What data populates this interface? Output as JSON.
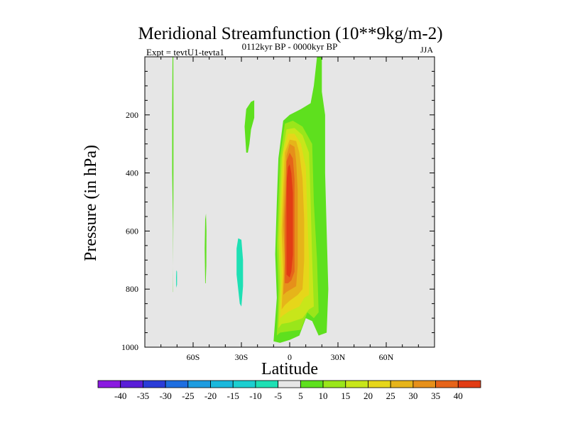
{
  "chart_data": {
    "type": "heatmap",
    "title": "Meridional Streamfunction (10**9kg/m-2)",
    "subtitle_left": "Expt = tevtU1-tevta1",
    "subtitle_center": "0112kyr BP - 0000kyr BP",
    "subtitle_right": "JJA",
    "xlabel": "Latitude",
    "ylabel": "Pressure (in hPa)",
    "xlim": [
      -90,
      90
    ],
    "ylim": [
      1000,
      0
    ],
    "x_ticks": [
      {
        "value": -60,
        "label": "60S"
      },
      {
        "value": -30,
        "label": "30S"
      },
      {
        "value": 0,
        "label": "0"
      },
      {
        "value": 30,
        "label": "30N"
      },
      {
        "value": 60,
        "label": "60N"
      }
    ],
    "y_ticks": [
      {
        "value": 200,
        "label": "200"
      },
      {
        "value": 400,
        "label": "400"
      },
      {
        "value": 600,
        "label": "600"
      },
      {
        "value": 800,
        "label": "800"
      },
      {
        "value": 1000,
        "label": "1000"
      }
    ],
    "colorbar": {
      "labels": [
        "-40",
        "-35",
        "-30",
        "-25",
        "-20",
        "-15",
        "-10",
        "-5",
        "5",
        "10",
        "15",
        "20",
        "25",
        "30",
        "35",
        "40"
      ],
      "colors": [
        "#8a1ae0",
        "#5a1ed8",
        "#2a3cd8",
        "#1e6ee0",
        "#1e9ce0",
        "#1ab8dc",
        "#1ccfd0",
        "#1ee0b4",
        "#e6e6e6",
        "#5ee01e",
        "#9ae61a",
        "#c8e61a",
        "#e6d61a",
        "#e6b41a",
        "#e6901a",
        "#e6641a",
        "#e23c14"
      ]
    },
    "contours": [
      {
        "level": 5,
        "color": "#5ee01e",
        "points": [
          [
            -10,
            980
          ],
          [
            -8,
            830
          ],
          [
            -9,
            680
          ],
          [
            -8,
            500
          ],
          [
            -7,
            350
          ],
          [
            -4,
            220
          ],
          [
            0,
            200
          ],
          [
            7,
            180
          ],
          [
            13,
            160
          ],
          [
            15,
            100
          ],
          [
            17,
            0
          ],
          [
            20,
            0
          ],
          [
            20,
            120
          ],
          [
            22,
            200
          ],
          [
            22,
            400
          ],
          [
            23,
            600
          ],
          [
            24,
            800
          ],
          [
            23,
            950
          ],
          [
            18,
            960
          ],
          [
            14,
            910
          ],
          [
            10,
            900
          ],
          [
            6,
            960
          ],
          [
            0,
            975
          ],
          [
            -6,
            985
          ]
        ]
      },
      {
        "level": 10,
        "color": "#9ae61a",
        "points": [
          [
            -8,
            960
          ],
          [
            -7,
            800
          ],
          [
            -8,
            650
          ],
          [
            -7,
            500
          ],
          [
            -6,
            350
          ],
          [
            -3,
            230
          ],
          [
            2,
            220
          ],
          [
            8,
            240
          ],
          [
            14,
            300
          ],
          [
            15,
            500
          ],
          [
            17,
            700
          ],
          [
            18,
            880
          ],
          [
            15,
            900
          ],
          [
            11,
            880
          ],
          [
            7,
            940
          ],
          [
            0,
            945
          ],
          [
            -6,
            950
          ]
        ]
      },
      {
        "level": 15,
        "color": "#c8e61a",
        "points": [
          [
            -7,
            935
          ],
          [
            -6,
            780
          ],
          [
            -7,
            630
          ],
          [
            -6,
            480
          ],
          [
            -5,
            350
          ],
          [
            -2,
            250
          ],
          [
            3,
            245
          ],
          [
            8,
            270
          ],
          [
            12,
            330
          ],
          [
            13,
            500
          ],
          [
            14,
            700
          ],
          [
            15,
            860
          ],
          [
            12,
            870
          ],
          [
            8,
            900
          ],
          [
            0,
            915
          ],
          [
            -5,
            920
          ]
        ]
      },
      {
        "level": 20,
        "color": "#e6d61a",
        "points": [
          [
            -6,
            900
          ],
          [
            -5,
            760
          ],
          [
            -6,
            620
          ],
          [
            -5,
            470
          ],
          [
            -4,
            330
          ],
          [
            -1,
            265
          ],
          [
            3,
            265
          ],
          [
            7,
            300
          ],
          [
            10,
            380
          ],
          [
            11,
            550
          ],
          [
            12,
            700
          ],
          [
            12,
            820
          ],
          [
            9,
            830
          ],
          [
            6,
            860
          ],
          [
            0,
            875
          ],
          [
            -4,
            890
          ]
        ]
      },
      {
        "level": 25,
        "color": "#e6b41a",
        "points": [
          [
            -5,
            870
          ],
          [
            -4,
            740
          ],
          [
            -5,
            600
          ],
          [
            -4,
            460
          ],
          [
            -3,
            330
          ],
          [
            0,
            285
          ],
          [
            4,
            290
          ],
          [
            6,
            330
          ],
          [
            8,
            420
          ],
          [
            9,
            560
          ],
          [
            9,
            700
          ],
          [
            8,
            800
          ],
          [
            5,
            820
          ],
          [
            0,
            840
          ],
          [
            -3,
            855
          ]
        ]
      },
      {
        "level": 30,
        "color": "#e6901a",
        "points": [
          [
            -4,
            820
          ],
          [
            -3,
            700
          ],
          [
            -4,
            580
          ],
          [
            -3,
            450
          ],
          [
            -2,
            340
          ],
          [
            0,
            300
          ],
          [
            3,
            310
          ],
          [
            4,
            360
          ],
          [
            5,
            460
          ],
          [
            5,
            600
          ],
          [
            5,
            720
          ],
          [
            4,
            790
          ],
          [
            1,
            800
          ],
          [
            -2,
            810
          ]
        ]
      },
      {
        "level": 35,
        "color": "#e6641a",
        "points": [
          [
            -3,
            780
          ],
          [
            -3,
            660
          ],
          [
            -3,
            550
          ],
          [
            -2,
            440
          ],
          [
            -2,
            360
          ],
          [
            0,
            330
          ],
          [
            2,
            350
          ],
          [
            3,
            420
          ],
          [
            3,
            540
          ],
          [
            3,
            660
          ],
          [
            3,
            740
          ],
          [
            1,
            770
          ],
          [
            -1,
            780
          ]
        ]
      },
      {
        "level": 40,
        "color": "#e23c14",
        "points": [
          [
            -2,
            750
          ],
          [
            -2,
            620
          ],
          [
            -2,
            520
          ],
          [
            -2,
            430
          ],
          [
            -1,
            380
          ],
          [
            0,
            370
          ],
          [
            1,
            400
          ],
          [
            2,
            470
          ],
          [
            2,
            580
          ],
          [
            2,
            680
          ],
          [
            1,
            740
          ],
          [
            0,
            760
          ]
        ]
      },
      {
        "level": 5,
        "color": "#5ee01e",
        "points": [
          [
            -27,
            330
          ],
          [
            -28,
            240
          ],
          [
            -27,
            180
          ],
          [
            -24,
            155
          ],
          [
            -22,
            150
          ],
          [
            -22,
            210
          ],
          [
            -24,
            250
          ],
          [
            -25,
            300
          ],
          [
            -26,
            330
          ]
        ]
      },
      {
        "level": 5,
        "color": "#5ee01e",
        "points": [
          [
            -72.5,
            810
          ],
          [
            -72.5,
            600
          ],
          [
            -73,
            400
          ],
          [
            -73,
            190
          ],
          [
            -72.8,
            0
          ],
          [
            -72.3,
            0
          ],
          [
            -72.2,
            190
          ],
          [
            -72.2,
            400
          ],
          [
            -72.3,
            600
          ],
          [
            -72.6,
            810
          ]
        ]
      },
      {
        "level": 5,
        "color": "#5ee01e",
        "points": [
          [
            -52.5,
            780
          ],
          [
            -52.8,
            660
          ],
          [
            -52.5,
            560
          ],
          [
            -52,
            540
          ],
          [
            -51.7,
            600
          ],
          [
            -51.8,
            720
          ],
          [
            -52.2,
            780
          ]
        ]
      },
      {
        "level": -5,
        "color": "#1ee0b4",
        "points": [
          [
            -31,
            850
          ],
          [
            -33,
            750
          ],
          [
            -33,
            660
          ],
          [
            -32,
            625
          ],
          [
            -30,
            630
          ],
          [
            -29,
            700
          ],
          [
            -29,
            790
          ],
          [
            -30,
            860
          ]
        ]
      },
      {
        "level": -5,
        "color": "#1ee0b4",
        "points": [
          [
            -70.5,
            795
          ],
          [
            -70.6,
            760
          ],
          [
            -70.4,
            735
          ],
          [
            -70,
            740
          ],
          [
            -70,
            785
          ]
        ]
      }
    ]
  }
}
